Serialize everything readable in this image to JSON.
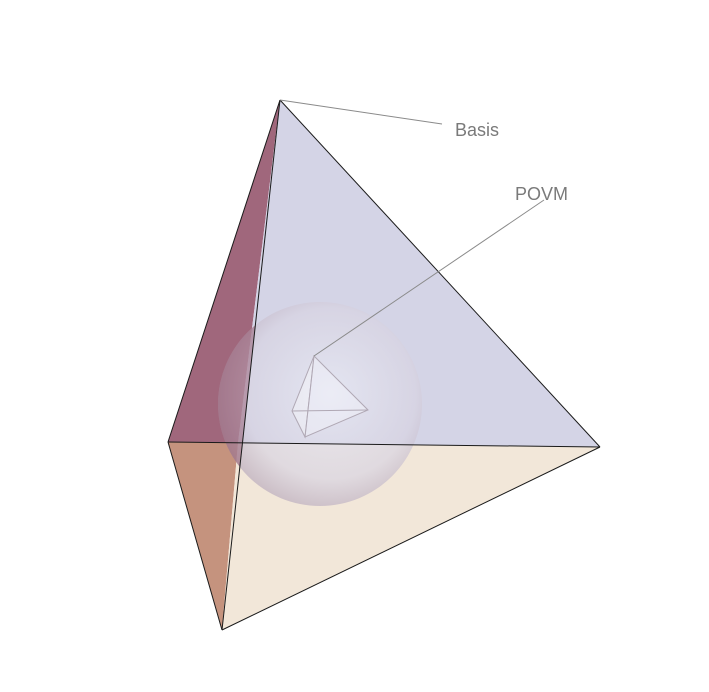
{
  "labels": {
    "basis": "Basis",
    "povm": "POVM"
  },
  "colors": {
    "face_left_upper": "#9b5f75",
    "face_left_lower": "#c08b76",
    "face_right_upper": "#d3d3e4",
    "face_bottom": "#f1e6d8",
    "edge": "#1a1a1a",
    "leader_line": "#8a8a8a",
    "label_text": "#7a7a7a",
    "sphere_center": "#e6e8f2",
    "sphere_edge": "#b6a8b8"
  }
}
